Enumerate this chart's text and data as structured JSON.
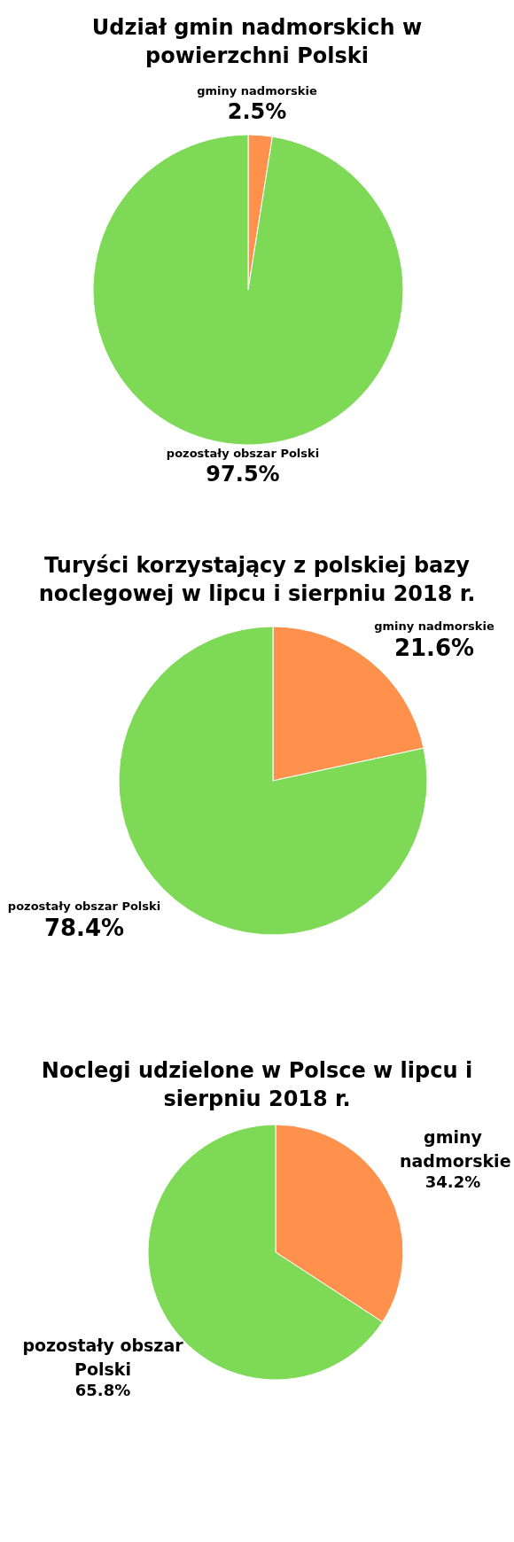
{
  "chart_data": [
    {
      "type": "pie",
      "title": "Udział gmin nadmorskich w powierzchni Polski",
      "categories": [
        "gminy nadmorskie",
        "pozostały obszar Polski"
      ],
      "values": [
        2.5,
        97.5
      ],
      "colors": [
        "#ff914d",
        "#7ed957"
      ],
      "value_labels": [
        "2.5%",
        "97.5%"
      ],
      "legend": false
    },
    {
      "type": "pie",
      "title": "Turyści korzystający z polskiej bazy noclegowej w lipcu i sierpniu 2018 r.",
      "categories": [
        "gminy nadmorskie",
        "pozostały obszar Polski"
      ],
      "values": [
        21.6,
        78.4
      ],
      "colors": [
        "#ff914d",
        "#7ed957"
      ],
      "value_labels": [
        "21.6%",
        "78.4%"
      ],
      "legend": false
    },
    {
      "type": "pie",
      "title": "Noclegi udzielone w Polsce w lipcu i sierpniu 2018 r.",
      "categories": [
        "gminy nadmorskie",
        "pozostały obszar Polski"
      ],
      "values": [
        34.2,
        65.8
      ],
      "colors": [
        "#ff914d",
        "#7ed957"
      ],
      "value_labels": [
        "34.2%",
        "65.8%"
      ],
      "legend": false
    }
  ]
}
